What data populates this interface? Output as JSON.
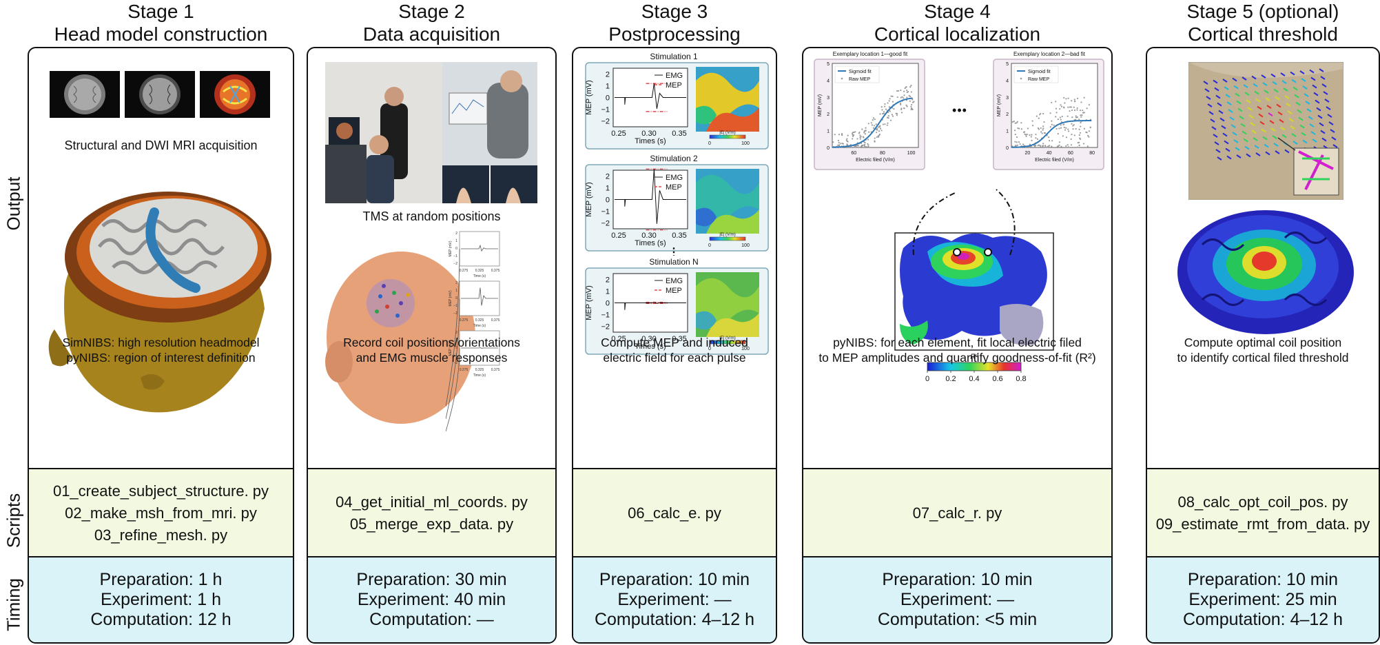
{
  "row_labels": {
    "output": "Output",
    "scripts": "Scripts",
    "timing": "Timing"
  },
  "stages": [
    {
      "title_line1": "Stage 1",
      "title_line2": "Head model construction",
      "image_caption": "Structural and DWI MRI acquisition",
      "output_lines": [
        "SimNIBS: high resolution headmodel",
        "pyNIBS: region of interest definition"
      ],
      "scripts": [
        "01_create_subject_structure. py",
        "02_make_msh_from_mri. py",
        "03_refine_mesh. py"
      ],
      "timing": [
        "Preparation: 1 h",
        "Experiment: 1 h",
        "Computation: 12 h"
      ]
    },
    {
      "title_line1": "Stage 2",
      "title_line2": "Data acquisition",
      "image_caption": "TMS at random positions",
      "output_lines": [
        "Record coil positions/orientations",
        "and EMG muscle responses"
      ],
      "scripts": [
        "04_get_initial_ml_coords. py",
        "05_merge_exp_data. py"
      ],
      "timing": [
        "Preparation: 30 min",
        "Experiment: 40 min",
        "Computation: —"
      ]
    },
    {
      "title_line1": "Stage 3",
      "title_line2": "Postprocessing",
      "output_lines": [
        "Compute MEP and induced",
        "electric field for each pulse"
      ],
      "scripts": [
        "06_calc_e. py"
      ],
      "timing": [
        "Preparation: 10 min",
        "Experiment: —",
        "Computation: 4–12 h"
      ]
    },
    {
      "title_line1": "Stage 4",
      "title_line2": "Cortical localization",
      "output_lines": [
        "pyNIBS: for each element, fit local electric filed",
        "to MEP amplitudes and quantify goodness-of-fit (R²)"
      ],
      "scripts": [
        "07_calc_r. py"
      ],
      "timing": [
        "Preparation: 10 min",
        "Experiment: —",
        "Computation: <5 min"
      ]
    },
    {
      "title_line1": "Stage 5 (optional)",
      "title_line2": "Cortical threshold",
      "output_lines": [
        "Compute optimal coil position",
        "to identify cortical filed threshold"
      ],
      "scripts": [
        "08_calc_opt_coil_pos. py",
        "09_estimate_rmt_from_data. py"
      ],
      "timing": [
        "Preparation: 10 min",
        "Experiment: 25 min",
        "Computation: 4–12 h"
      ]
    }
  ],
  "stage2_mini": {
    "ylabel": "MEP (mV)",
    "xlabel": "Time (s)",
    "yticks": [
      "2",
      "1",
      "0",
      "−1",
      "−2"
    ],
    "xticks": [
      "0.275",
      "0.325",
      "0.375"
    ]
  },
  "stage3_panels": [
    {
      "title": "Stimulation 1"
    },
    {
      "title": "Stimulation 2"
    },
    {
      "title": "Stimulation N"
    }
  ],
  "stage3_axes": {
    "ylabel": "MEP (mV)",
    "xlabel": "Times (s)",
    "yticks": [
      "2",
      "1",
      "0",
      "−1",
      "−2"
    ],
    "xticks": [
      "0.25",
      "0.30",
      "0.35"
    ],
    "legend": [
      "EMG",
      "MEP"
    ],
    "colorbar_label": "|E| (V/m)",
    "colorbar_ticks": [
      "0",
      "100"
    ],
    "continuation": "⋮"
  },
  "stage4": {
    "fit_panels": [
      {
        "title": "Exemplary location 1—good fit",
        "xticks": [
          "60",
          "80",
          "100"
        ]
      },
      {
        "title": "Exemplary location 2—bad fit",
        "xticks": [
          "20",
          "40",
          "60",
          "80"
        ]
      }
    ],
    "ellipsis": "•••",
    "yticks": [
      "5",
      "4",
      "3",
      "2",
      "1",
      "0"
    ],
    "ylabel": "MEP (mV)",
    "xlabel": "Electric filed (V/m)",
    "legend": [
      "Sigmoid fit",
      "Raw MEP"
    ],
    "colorbar": {
      "label": "R²",
      "ticks": [
        "0",
        "0.2",
        "0.4",
        "0.6",
        "0.8"
      ]
    }
  },
  "colors": {
    "scripts_bg": "#f3f9e1",
    "timing_bg": "#d9f3f9",
    "border": "#111111",
    "fit_line": "#2f78b7",
    "mep_red": "#d62728"
  }
}
